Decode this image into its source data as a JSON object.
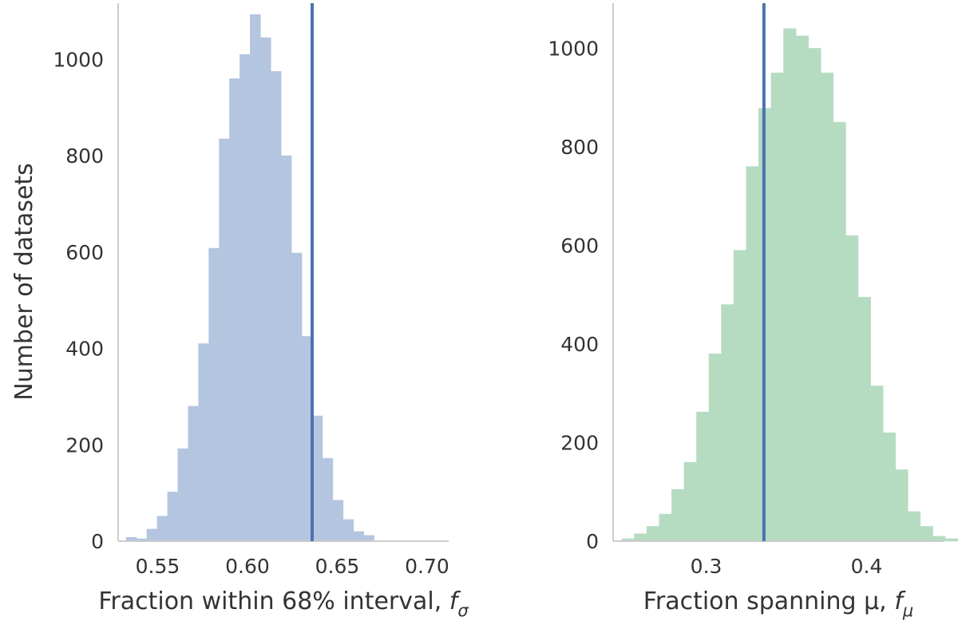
{
  "chart_data": [
    {
      "type": "bar",
      "subtype": "histogram",
      "xlabel": "Fraction within 68% interval, f",
      "xlabel_subscript": "σ",
      "ylabel": "Number of datasets",
      "xlim": [
        0.528,
        0.712
      ],
      "ylim": [
        0,
        1110
      ],
      "xticks": [
        0.55,
        0.6,
        0.65,
        0.7
      ],
      "xtick_labels": [
        "0.55",
        "0.60",
        "0.65",
        "0.70"
      ],
      "yticks": [
        0,
        200,
        400,
        600,
        800,
        1000
      ],
      "ytick_labels": [
        "0",
        "200",
        "400",
        "600",
        "800",
        "1000"
      ],
      "bin_start": 0.5325,
      "bin_width": 0.00575,
      "values": [
        8,
        5,
        25,
        52,
        102,
        192,
        280,
        410,
        608,
        835,
        960,
        1010,
        1093,
        1045,
        975,
        800,
        598,
        425,
        260,
        172,
        85,
        45,
        20,
        12
      ],
      "reference_line_x": 0.636,
      "bar_color": "#b4c5e0",
      "line_color": "#4c72b0",
      "grid": false
    },
    {
      "type": "bar",
      "subtype": "histogram",
      "xlabel": "Fraction spanning μ, f",
      "xlabel_subscript": "μ",
      "ylabel": "",
      "xlim": [
        0.242,
        0.448
      ],
      "ylim": [
        0,
        1085
      ],
      "xticks": [
        0.3,
        0.4
      ],
      "xtick_labels": [
        "0.3",
        "0.4"
      ],
      "yticks": [
        0,
        200,
        400,
        600,
        800,
        1000
      ],
      "ytick_labels": [
        "0",
        "200",
        "400",
        "600",
        "800",
        "1000"
      ],
      "bin_start": 0.2475,
      "bin_width": 0.00775,
      "values": [
        5,
        15,
        30,
        55,
        105,
        160,
        262,
        380,
        480,
        590,
        760,
        878,
        950,
        1040,
        1025,
        1000,
        950,
        850,
        620,
        495,
        315,
        220,
        145,
        60,
        30,
        10,
        5
      ],
      "reference_line_x": 0.336,
      "bar_color": "#b5dcc1",
      "line_color": "#4c72b0",
      "grid": false
    }
  ]
}
